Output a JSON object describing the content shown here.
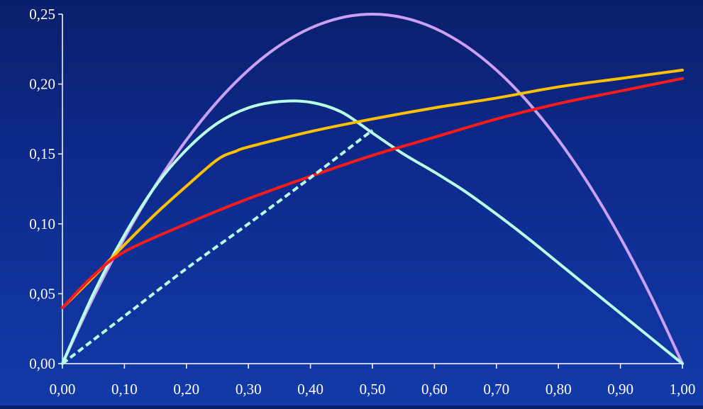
{
  "chart_data": {
    "type": "line",
    "title": "",
    "xlabel": "",
    "ylabel": "",
    "xlim": [
      0,
      1
    ],
    "ylim": [
      0,
      0.25
    ],
    "x_ticks": [
      "0,00",
      "0,10",
      "0,20",
      "0,30",
      "0,40",
      "0,50",
      "0,60",
      "0,70",
      "0,80",
      "0,90",
      "1,00"
    ],
    "y_ticks": [
      "0,00",
      "0,05",
      "0,10",
      "0,15",
      "0,20",
      "0,25"
    ],
    "grid": false,
    "legend": "none",
    "colors": {
      "axis": "#ffffff",
      "purple": "#c9a0f5",
      "aqua": "#b8ffe6",
      "orange": "#ffc000",
      "red": "#ff1a1a",
      "dashed": "#b8ffe6"
    },
    "series": [
      {
        "color": "#c9a0f5",
        "style": "solid",
        "x": [
          0,
          0.05,
          0.1,
          0.15,
          0.2,
          0.25,
          0.3,
          0.35,
          0.4,
          0.45,
          0.5,
          0.55,
          0.6,
          0.65,
          0.7,
          0.75,
          0.8,
          0.85,
          0.9,
          0.95,
          1.0
        ],
        "y": [
          0,
          0.0475,
          0.09,
          0.1275,
          0.16,
          0.1875,
          0.21,
          0.2275,
          0.24,
          0.2475,
          0.25,
          0.2475,
          0.24,
          0.2275,
          0.21,
          0.1875,
          0.16,
          0.1275,
          0.09,
          0.0475,
          0
        ]
      },
      {
        "color": "#b8ffe6",
        "style": "solid",
        "x": [
          0,
          0.05,
          0.1,
          0.15,
          0.2,
          0.25,
          0.3,
          0.35,
          0.4,
          0.45,
          0.5,
          0.55,
          0.6,
          0.65,
          0.7,
          0.75,
          0.8,
          0.85,
          0.9,
          0.95,
          1.0
        ],
        "y": [
          0,
          0.05,
          0.092,
          0.127,
          0.153,
          0.172,
          0.183,
          0.1875,
          0.187,
          0.18,
          0.165,
          0.15,
          0.137,
          0.123,
          0.107,
          0.09,
          0.072,
          0.054,
          0.036,
          0.018,
          0
        ]
      },
      {
        "color": "#ffc000",
        "style": "solid",
        "x": [
          0,
          0.05,
          0.1,
          0.15,
          0.2,
          0.25,
          0.28,
          0.3,
          0.4,
          0.5,
          0.6,
          0.7,
          0.8,
          0.9,
          1.0
        ],
        "y": [
          0.04,
          0.062,
          0.085,
          0.107,
          0.127,
          0.146,
          0.152,
          0.155,
          0.166,
          0.175,
          0.183,
          0.19,
          0.198,
          0.204,
          0.21
        ]
      },
      {
        "color": "#ff1a1a",
        "style": "solid",
        "x": [
          0,
          0.05,
          0.1,
          0.2,
          0.3,
          0.4,
          0.5,
          0.6,
          0.7,
          0.8,
          0.9,
          1.0
        ],
        "y": [
          0.04,
          0.063,
          0.08,
          0.1,
          0.118,
          0.134,
          0.149,
          0.162,
          0.175,
          0.186,
          0.195,
          0.204
        ]
      },
      {
        "color": "#b8ffe6",
        "style": "dashed",
        "x": [
          0,
          0.1,
          0.2,
          0.3,
          0.4,
          0.5
        ],
        "y": [
          0,
          0.034,
          0.068,
          0.1,
          0.133,
          0.167
        ]
      }
    ]
  }
}
